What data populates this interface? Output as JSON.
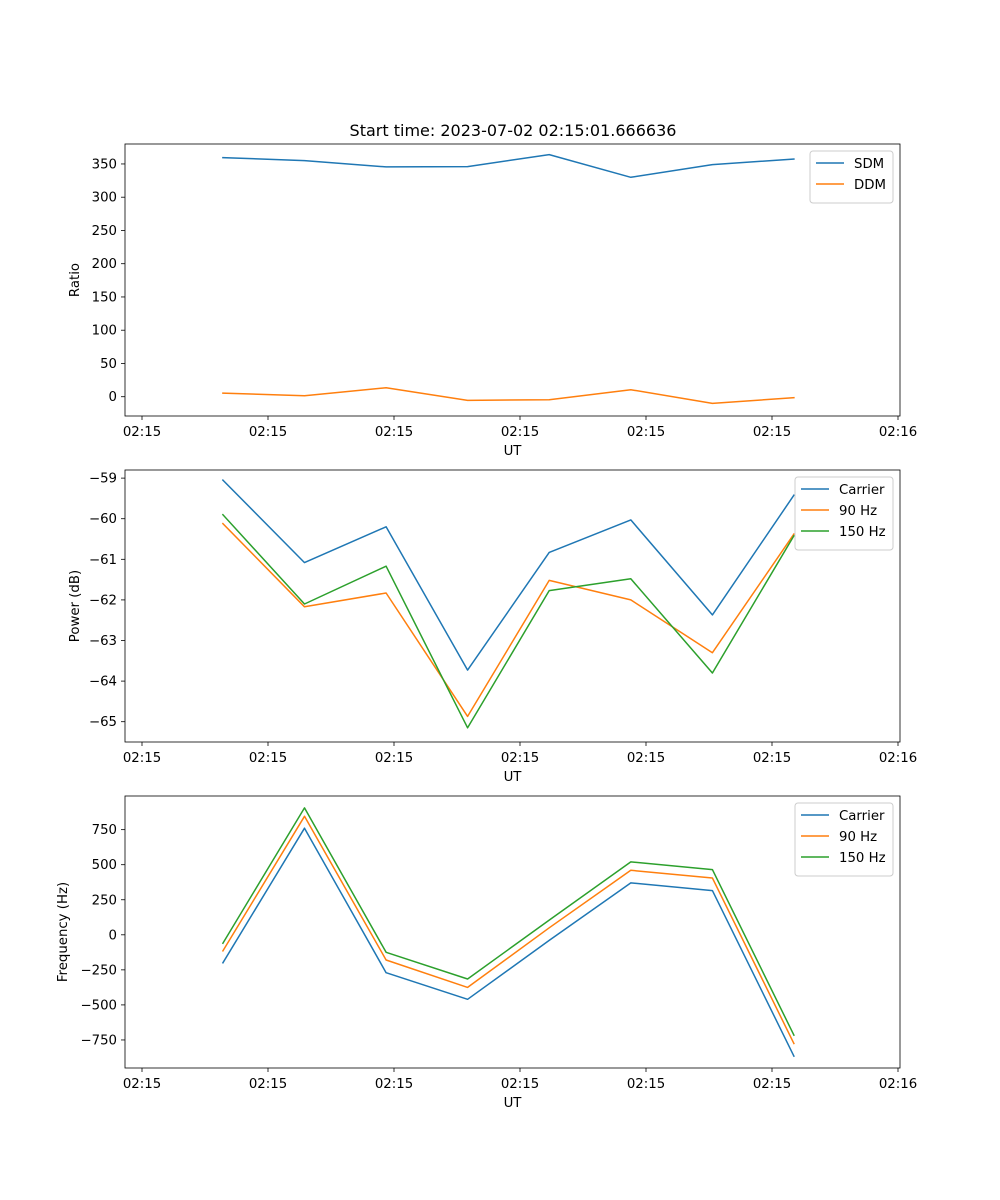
{
  "figure": {
    "title": "Start time: 2023-07-02 02:15:01.666636"
  },
  "chart_data": [
    {
      "type": "line",
      "xlabel": "UT",
      "ylabel": "Ratio",
      "xtick_labels": [
        "02:15",
        "02:15",
        "02:15",
        "02:15",
        "02:15",
        "02:15",
        "02:16"
      ],
      "yticks": [
        0,
        50,
        100,
        150,
        200,
        250,
        300,
        350
      ],
      "ylim": [
        -29,
        380
      ],
      "x": [
        1,
        2,
        3,
        4,
        5,
        6,
        7,
        8
      ],
      "xlim": [
        -0.2,
        9.3
      ],
      "grid": false,
      "legend": "top-right",
      "series": [
        {
          "name": "SDM",
          "color": "#1f77b4",
          "values": [
            359.5,
            355.0,
            345.5,
            346.0,
            364.0,
            330.0,
            349.0,
            357.5
          ]
        },
        {
          "name": "DDM",
          "color": "#ff7f0e",
          "values": [
            5.5,
            1.5,
            13.5,
            -5.5,
            -4.5,
            10.5,
            -10.0,
            -1.5
          ]
        }
      ]
    },
    {
      "type": "line",
      "xlabel": "UT",
      "ylabel": "Power (dB)",
      "xtick_labels": [
        "02:15",
        "02:15",
        "02:15",
        "02:15",
        "02:15",
        "02:15",
        "02:16"
      ],
      "yticks": [
        -65,
        -64,
        -63,
        -62,
        -61,
        -60,
        -59
      ],
      "ylim": [
        -65.5,
        -58.8
      ],
      "x": [
        1,
        2,
        3,
        4,
        5,
        6,
        7,
        8
      ],
      "xlim": [
        -0.2,
        9.3
      ],
      "grid": false,
      "legend": "top-right",
      "series": [
        {
          "name": "Carrier",
          "color": "#1f77b4",
          "values": [
            -59.05,
            -61.08,
            -60.2,
            -63.73,
            -60.83,
            -60.03,
            -62.37,
            -59.42
          ]
        },
        {
          "name": "90 Hz",
          "color": "#ff7f0e",
          "values": [
            -60.12,
            -62.17,
            -61.83,
            -64.87,
            -61.52,
            -62.0,
            -63.3,
            -60.38
          ]
        },
        {
          "name": "150 Hz",
          "color": "#2ca02c",
          "values": [
            -59.9,
            -62.1,
            -61.17,
            -65.15,
            -61.77,
            -61.48,
            -63.8,
            -60.42
          ]
        }
      ]
    },
    {
      "type": "line",
      "xlabel": "UT",
      "ylabel": "Frequency (Hz)",
      "xtick_labels": [
        "02:15",
        "02:15",
        "02:15",
        "02:15",
        "02:15",
        "02:15",
        "02:16"
      ],
      "yticks": [
        -750,
        -500,
        -250,
        0,
        250,
        500,
        750
      ],
      "ylim": [
        -950,
        990
      ],
      "x": [
        1,
        2,
        3,
        4,
        5,
        6,
        7,
        8
      ],
      "xlim": [
        -0.2,
        9.3
      ],
      "grid": false,
      "legend": "top-right",
      "series": [
        {
          "name": "Carrier",
          "color": "#1f77b4",
          "values": [
            -200,
            760,
            -270,
            -460,
            -40,
            370,
            315,
            -865
          ]
        },
        {
          "name": "90 Hz",
          "color": "#ff7f0e",
          "values": [
            -115,
            845,
            -180,
            -375,
            50,
            460,
            405,
            -775
          ]
        },
        {
          "name": "150 Hz",
          "color": "#2ca02c",
          "values": [
            -60,
            905,
            -125,
            -315,
            105,
            520,
            465,
            -715
          ]
        }
      ]
    }
  ]
}
